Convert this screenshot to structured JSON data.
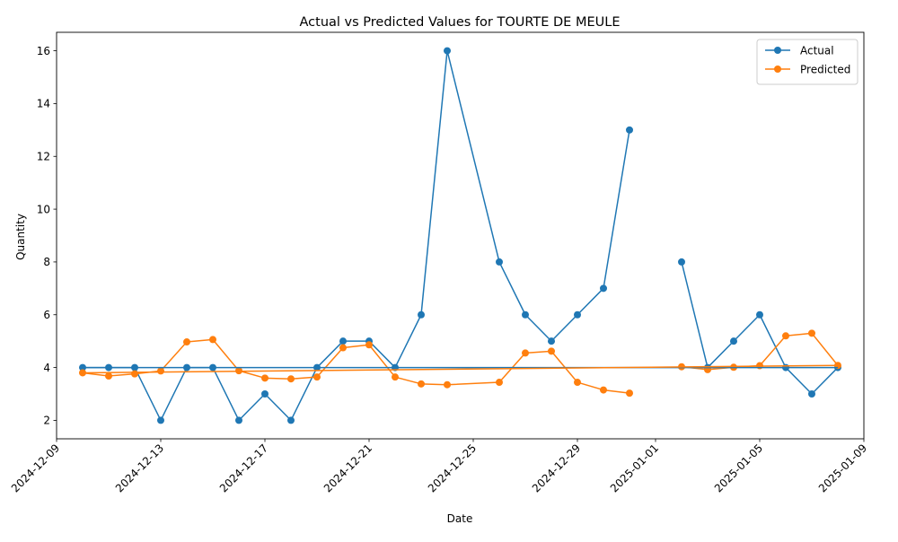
{
  "chart_data": {
    "type": "line",
    "title": "Actual vs Predicted Values for TOURTE DE MEULE",
    "xlabel": "Date",
    "ylabel": "Quantity",
    "x_axis_type": "date",
    "xlim": [
      "2024-12-09",
      "2025-01-09"
    ],
    "ylim": [
      1.3,
      16.7
    ],
    "x_ticks": [
      "2024-12-09",
      "2024-12-13",
      "2024-12-17",
      "2024-12-21",
      "2024-12-25",
      "2024-12-29",
      "2025-01-01",
      "2025-01-05",
      "2025-01-09"
    ],
    "y_ticks": [
      2,
      4,
      6,
      8,
      10,
      12,
      14,
      16
    ],
    "grid": false,
    "legend_position": "top-right",
    "series": [
      {
        "name": "Actual",
        "color": "#1f77b4",
        "marker": "circle",
        "points": [
          {
            "x": "2024-12-10",
            "y": 4
          },
          {
            "x": "2024-12-11",
            "y": 4
          },
          {
            "x": "2024-12-12",
            "y": 4
          },
          {
            "x": "2024-12-13",
            "y": 2
          },
          {
            "x": "2024-12-14",
            "y": 4
          },
          {
            "x": "2024-12-15",
            "y": 4
          },
          {
            "x": "2024-12-16",
            "y": 2
          },
          {
            "x": "2024-12-17",
            "y": 3
          },
          {
            "x": "2024-12-18",
            "y": 2
          },
          {
            "x": "2024-12-19",
            "y": 4
          },
          {
            "x": "2024-12-20",
            "y": 5
          },
          {
            "x": "2024-12-21",
            "y": 5
          },
          {
            "x": "2024-12-22",
            "y": 4
          },
          {
            "x": "2024-12-23",
            "y": 6
          },
          {
            "x": "2024-12-24",
            "y": 16
          },
          {
            "x": "2024-12-26",
            "y": 8
          },
          {
            "x": "2024-12-27",
            "y": 6
          },
          {
            "x": "2024-12-28",
            "y": 5
          },
          {
            "x": "2024-12-29",
            "y": 6
          },
          {
            "x": "2024-12-30",
            "y": 7
          },
          {
            "x": "2024-12-31",
            "y": 13
          },
          {
            "x": "2025-01-02",
            "y": 8
          },
          {
            "x": "2025-01-03",
            "y": 4
          },
          {
            "x": "2025-01-04",
            "y": 5
          },
          {
            "x": "2025-01-05",
            "y": 6
          },
          {
            "x": "2025-01-06",
            "y": 4
          },
          {
            "x": "2025-01-07",
            "y": 3
          },
          {
            "x": "2025-01-08",
            "y": 4
          }
        ]
      },
      {
        "name": "Predicted",
        "color": "#ff7f0e",
        "marker": "circle",
        "points": [
          {
            "x": "2024-12-10",
            "y": 3.8
          },
          {
            "x": "2024-12-11",
            "y": 3.68
          },
          {
            "x": "2024-12-12",
            "y": 3.76
          },
          {
            "x": "2024-12-13",
            "y": 3.87
          },
          {
            "x": "2024-12-14",
            "y": 4.97
          },
          {
            "x": "2024-12-15",
            "y": 5.06
          },
          {
            "x": "2024-12-16",
            "y": 3.88
          },
          {
            "x": "2024-12-17",
            "y": 3.6
          },
          {
            "x": "2024-12-18",
            "y": 3.57
          },
          {
            "x": "2024-12-19",
            "y": 3.64
          },
          {
            "x": "2024-12-20",
            "y": 4.75
          },
          {
            "x": "2024-12-21",
            "y": 4.86
          },
          {
            "x": "2024-12-22",
            "y": 3.64
          },
          {
            "x": "2024-12-23",
            "y": 3.38
          },
          {
            "x": "2024-12-24",
            "y": 3.35
          },
          {
            "x": "2024-12-26",
            "y": 3.44
          },
          {
            "x": "2024-12-27",
            "y": 4.55
          },
          {
            "x": "2024-12-28",
            "y": 4.62
          },
          {
            "x": "2024-12-29",
            "y": 3.44
          },
          {
            "x": "2024-12-30",
            "y": 3.15
          },
          {
            "x": "2024-12-31",
            "y": 3.03
          },
          {
            "x": "2025-01-02",
            "y": 4.03
          },
          {
            "x": "2025-01-03",
            "y": 3.92
          },
          {
            "x": "2025-01-04",
            "y": 4.01
          },
          {
            "x": "2025-01-05",
            "y": 4.07
          },
          {
            "x": "2025-01-06",
            "y": 5.2
          },
          {
            "x": "2025-01-07",
            "y": 5.3
          },
          {
            "x": "2025-01-08",
            "y": 4.08
          }
        ]
      }
    ],
    "connector_lines": [
      {
        "series": "Actual",
        "color": "#1f77b4",
        "from": {
          "x": "2024-12-10",
          "y": 4
        },
        "to": {
          "x": "2025-01-08",
          "y": 4
        }
      },
      {
        "series": "Predicted",
        "color": "#ff7f0e",
        "from": {
          "x": "2024-12-10",
          "y": 3.8
        },
        "to": {
          "x": "2025-01-08",
          "y": 4.08
        }
      }
    ]
  }
}
